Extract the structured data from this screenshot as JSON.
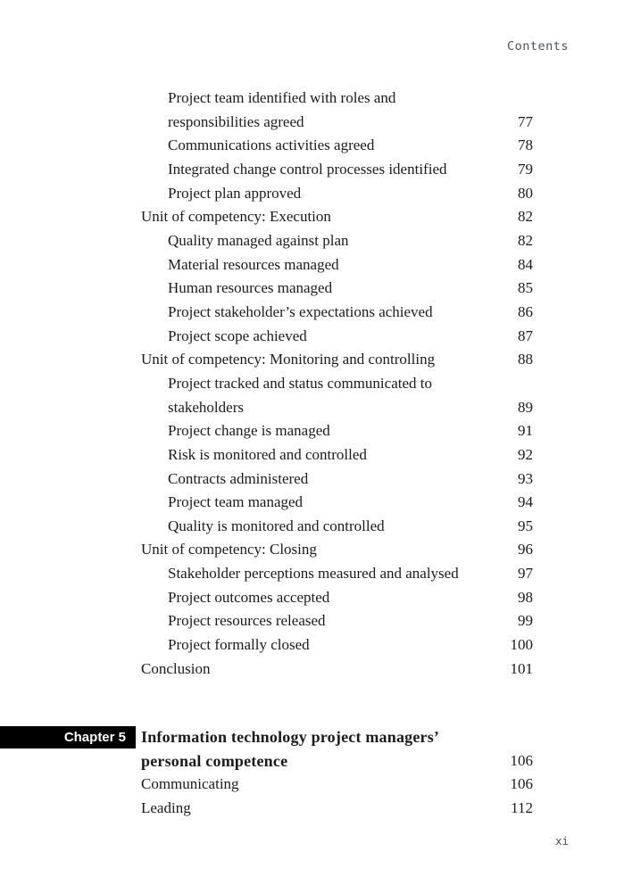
{
  "header": {
    "label": "Contents"
  },
  "footer": {
    "page_number": "xi"
  },
  "colors": {
    "text": "#1b1b1b",
    "muted_gray": "#4a5257",
    "chapter_box_bg": "#000000",
    "chapter_box_text": "#ffffff"
  },
  "toc": {
    "entries": [
      {
        "level": 2,
        "lines": [
          "Project team identified with roles and",
          "responsibilities agreed"
        ],
        "page": "77"
      },
      {
        "level": 2,
        "lines": [
          "Communications activities agreed"
        ],
        "page": "78"
      },
      {
        "level": 2,
        "lines": [
          "Integrated change control processes identified"
        ],
        "page": "79"
      },
      {
        "level": 2,
        "lines": [
          "Project plan approved"
        ],
        "page": "80"
      },
      {
        "level": 1,
        "lines": [
          "Unit of competency: Execution"
        ],
        "page": "82"
      },
      {
        "level": 2,
        "lines": [
          "Quality managed against plan"
        ],
        "page": "82"
      },
      {
        "level": 2,
        "lines": [
          "Material resources managed"
        ],
        "page": "84"
      },
      {
        "level": 2,
        "lines": [
          "Human resources managed"
        ],
        "page": "85"
      },
      {
        "level": 2,
        "lines": [
          "Project stakeholder’s expectations achieved"
        ],
        "page": "86"
      },
      {
        "level": 2,
        "lines": [
          "Project scope achieved"
        ],
        "page": "87"
      },
      {
        "level": 1,
        "lines": [
          "Unit of competency: Monitoring and controlling"
        ],
        "page": "88"
      },
      {
        "level": 2,
        "lines": [
          "Project tracked and status communicated to",
          "stakeholders"
        ],
        "page": "89"
      },
      {
        "level": 2,
        "lines": [
          "Project change is managed"
        ],
        "page": "91"
      },
      {
        "level": 2,
        "lines": [
          "Risk is monitored and controlled"
        ],
        "page": "92"
      },
      {
        "level": 2,
        "lines": [
          "Contracts administered"
        ],
        "page": "93"
      },
      {
        "level": 2,
        "lines": [
          "Project team managed"
        ],
        "page": "94"
      },
      {
        "level": 2,
        "lines": [
          "Quality is monitored and controlled"
        ],
        "page": "95"
      },
      {
        "level": 1,
        "lines": [
          "Unit of competency: Closing"
        ],
        "page": "96"
      },
      {
        "level": 2,
        "lines": [
          "Stakeholder perceptions measured and analysed"
        ],
        "page": "97"
      },
      {
        "level": 2,
        "lines": [
          "Project outcomes accepted"
        ],
        "page": "98"
      },
      {
        "level": 2,
        "lines": [
          "Project resources released"
        ],
        "page": "99"
      },
      {
        "level": 2,
        "lines": [
          "Project formally closed"
        ],
        "page": "100"
      },
      {
        "level": 1,
        "lines": [
          "Conclusion"
        ],
        "page": "101"
      }
    ]
  },
  "chapter": {
    "label": "Chapter 5",
    "title_lines": [
      "Information technology project managers’",
      "personal competence"
    ],
    "title_page": "106",
    "entries": [
      {
        "level": 1,
        "lines": [
          "Communicating"
        ],
        "page": "106"
      },
      {
        "level": 1,
        "lines": [
          "Leading"
        ],
        "page": "112"
      }
    ]
  }
}
